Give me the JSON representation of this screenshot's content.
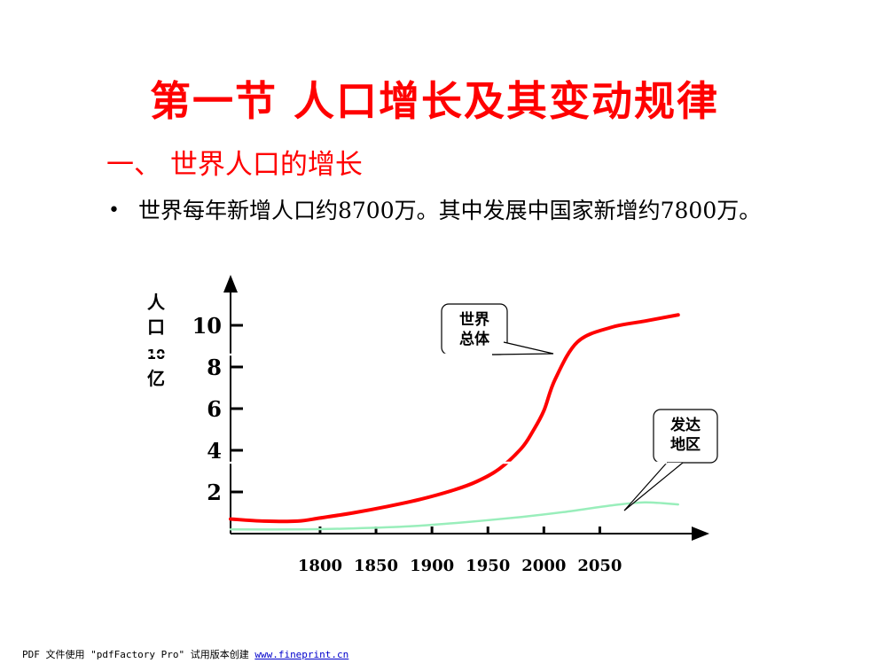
{
  "slide": {
    "title": "第一节  人口增长及其变动规律",
    "subtitle": "一、 世界人口的增长",
    "bullet_marker": "•",
    "bullet_text": "世界每年新增人口约8700万。其中发展中国家新增约7800万。"
  },
  "footer": {
    "text": "PDF 文件使用 \"pdfFactory Pro\" 试用版本创建 ",
    "link": "www.fineprint.cn"
  },
  "chart_data": {
    "type": "line",
    "ylabel_chars": [
      "人",
      "口",
      "10",
      "亿"
    ],
    "x_ticks": [
      1800,
      1850,
      1900,
      1950,
      2000,
      2050
    ],
    "y_ticks": [
      2,
      4,
      6,
      8,
      10
    ],
    "xlim": [
      1720,
      2140
    ],
    "ylim": [
      0,
      12
    ],
    "series": [
      {
        "name": "世界总体",
        "color": "#ff0000",
        "x": [
          1720,
          1750,
          1780,
          1800,
          1830,
          1860,
          1890,
          1920,
          1940,
          1960,
          1980,
          1990,
          2000,
          2010,
          2030,
          2060,
          2090,
          2120
        ],
        "y": [
          0.7,
          0.6,
          0.6,
          0.75,
          1.0,
          1.3,
          1.65,
          2.1,
          2.5,
          3.1,
          4.1,
          4.9,
          5.9,
          7.4,
          9.2,
          9.9,
          10.2,
          10.5
        ]
      },
      {
        "name": "发达地区",
        "color": "#99eebb",
        "x": [
          1720,
          1780,
          1830,
          1880,
          1930,
          1980,
          2020,
          2060,
          2090,
          2120
        ],
        "y": [
          0.2,
          0.2,
          0.25,
          0.35,
          0.55,
          0.8,
          1.05,
          1.35,
          1.5,
          1.4
        ]
      }
    ],
    "annotations": [
      {
        "lines": [
          "世界",
          "总体"
        ]
      },
      {
        "lines": [
          "发达",
          "地区"
        ]
      }
    ]
  }
}
